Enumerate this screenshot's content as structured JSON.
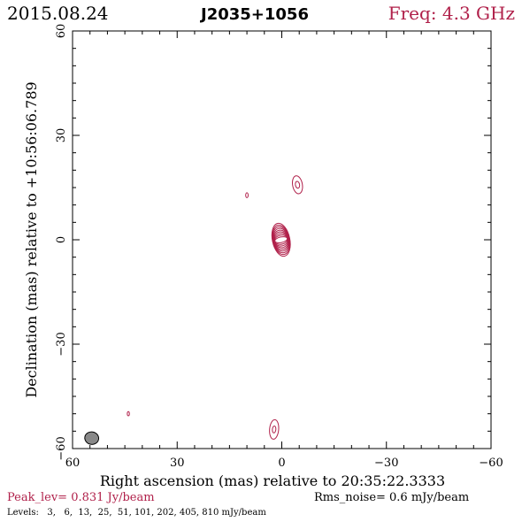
{
  "header": {
    "date": "2015.08.24",
    "source": "J2035+1056",
    "freq": "Freq: 4.3 GHz"
  },
  "footer": {
    "peak": "Peak_lev=  0.831 Jy/beam",
    "rms": "Rms_noise=  0.6 mJy/beam",
    "levels": "Levels:   3,   6,  13,  25,  51, 101, 202, 405, 810 mJy/beam"
  },
  "colors": {
    "contour": "#b0204a",
    "beam_fill": "#888888",
    "frame": "#000000"
  },
  "chart_data": {
    "type": "contour",
    "title": "J2035+1056",
    "xlabel": "Right ascension (mas) relative to 20:35:22.3333",
    "ylabel": "Declination (mas) relative to +10:56:06.789",
    "xlim": [
      60,
      -60
    ],
    "ylim": [
      -60,
      60
    ],
    "x_ticks": [
      60,
      30,
      0,
      -30,
      -60
    ],
    "y_ticks": [
      60,
      30,
      0,
      -30,
      -60
    ],
    "x_tick_labels": [
      "60",
      "30",
      "0",
      "−30",
      "−60"
    ],
    "y_tick_labels": [
      "60",
      "30",
      "0",
      "−30",
      "−60"
    ],
    "peak_jy_per_beam": 0.831,
    "rms_mjy_per_beam": 0.6,
    "levels_mjy": [
      3,
      6,
      13,
      25,
      51,
      101,
      202,
      405,
      810
    ],
    "beam": {
      "x": 54.5,
      "y": -57.0,
      "major": 3.6,
      "minor": 2.0,
      "pa_deg": 10
    },
    "components": [
      {
        "name": "core",
        "x": 0.2,
        "y": 0.0,
        "a0": 1.8,
        "b0": 0.8,
        "a1": 2.5,
        "b1": 4.8,
        "pa_deg": -12,
        "n": 9
      },
      {
        "name": "north-jet-blob",
        "x": -4.5,
        "y": 15.8,
        "a0": 0.6,
        "b0": 1.0,
        "a1": 1.4,
        "b1": 2.6,
        "pa_deg": -10,
        "n": 2
      },
      {
        "name": "south-blob",
        "x": 2.2,
        "y": -54.5,
        "a0": 0.5,
        "b0": 1.0,
        "a1": 1.3,
        "b1": 2.8,
        "pa_deg": 5,
        "n": 2
      },
      {
        "name": "spot-1",
        "x": 10.0,
        "y": 12.8,
        "a0": 0.35,
        "b0": 0.7,
        "a1": 0.35,
        "b1": 0.7,
        "pa_deg": 0,
        "n": 1
      },
      {
        "name": "spot-2",
        "x": 44.0,
        "y": -50.0,
        "a0": 0.3,
        "b0": 0.6,
        "a1": 0.3,
        "b1": 0.6,
        "pa_deg": 0,
        "n": 1
      }
    ]
  }
}
